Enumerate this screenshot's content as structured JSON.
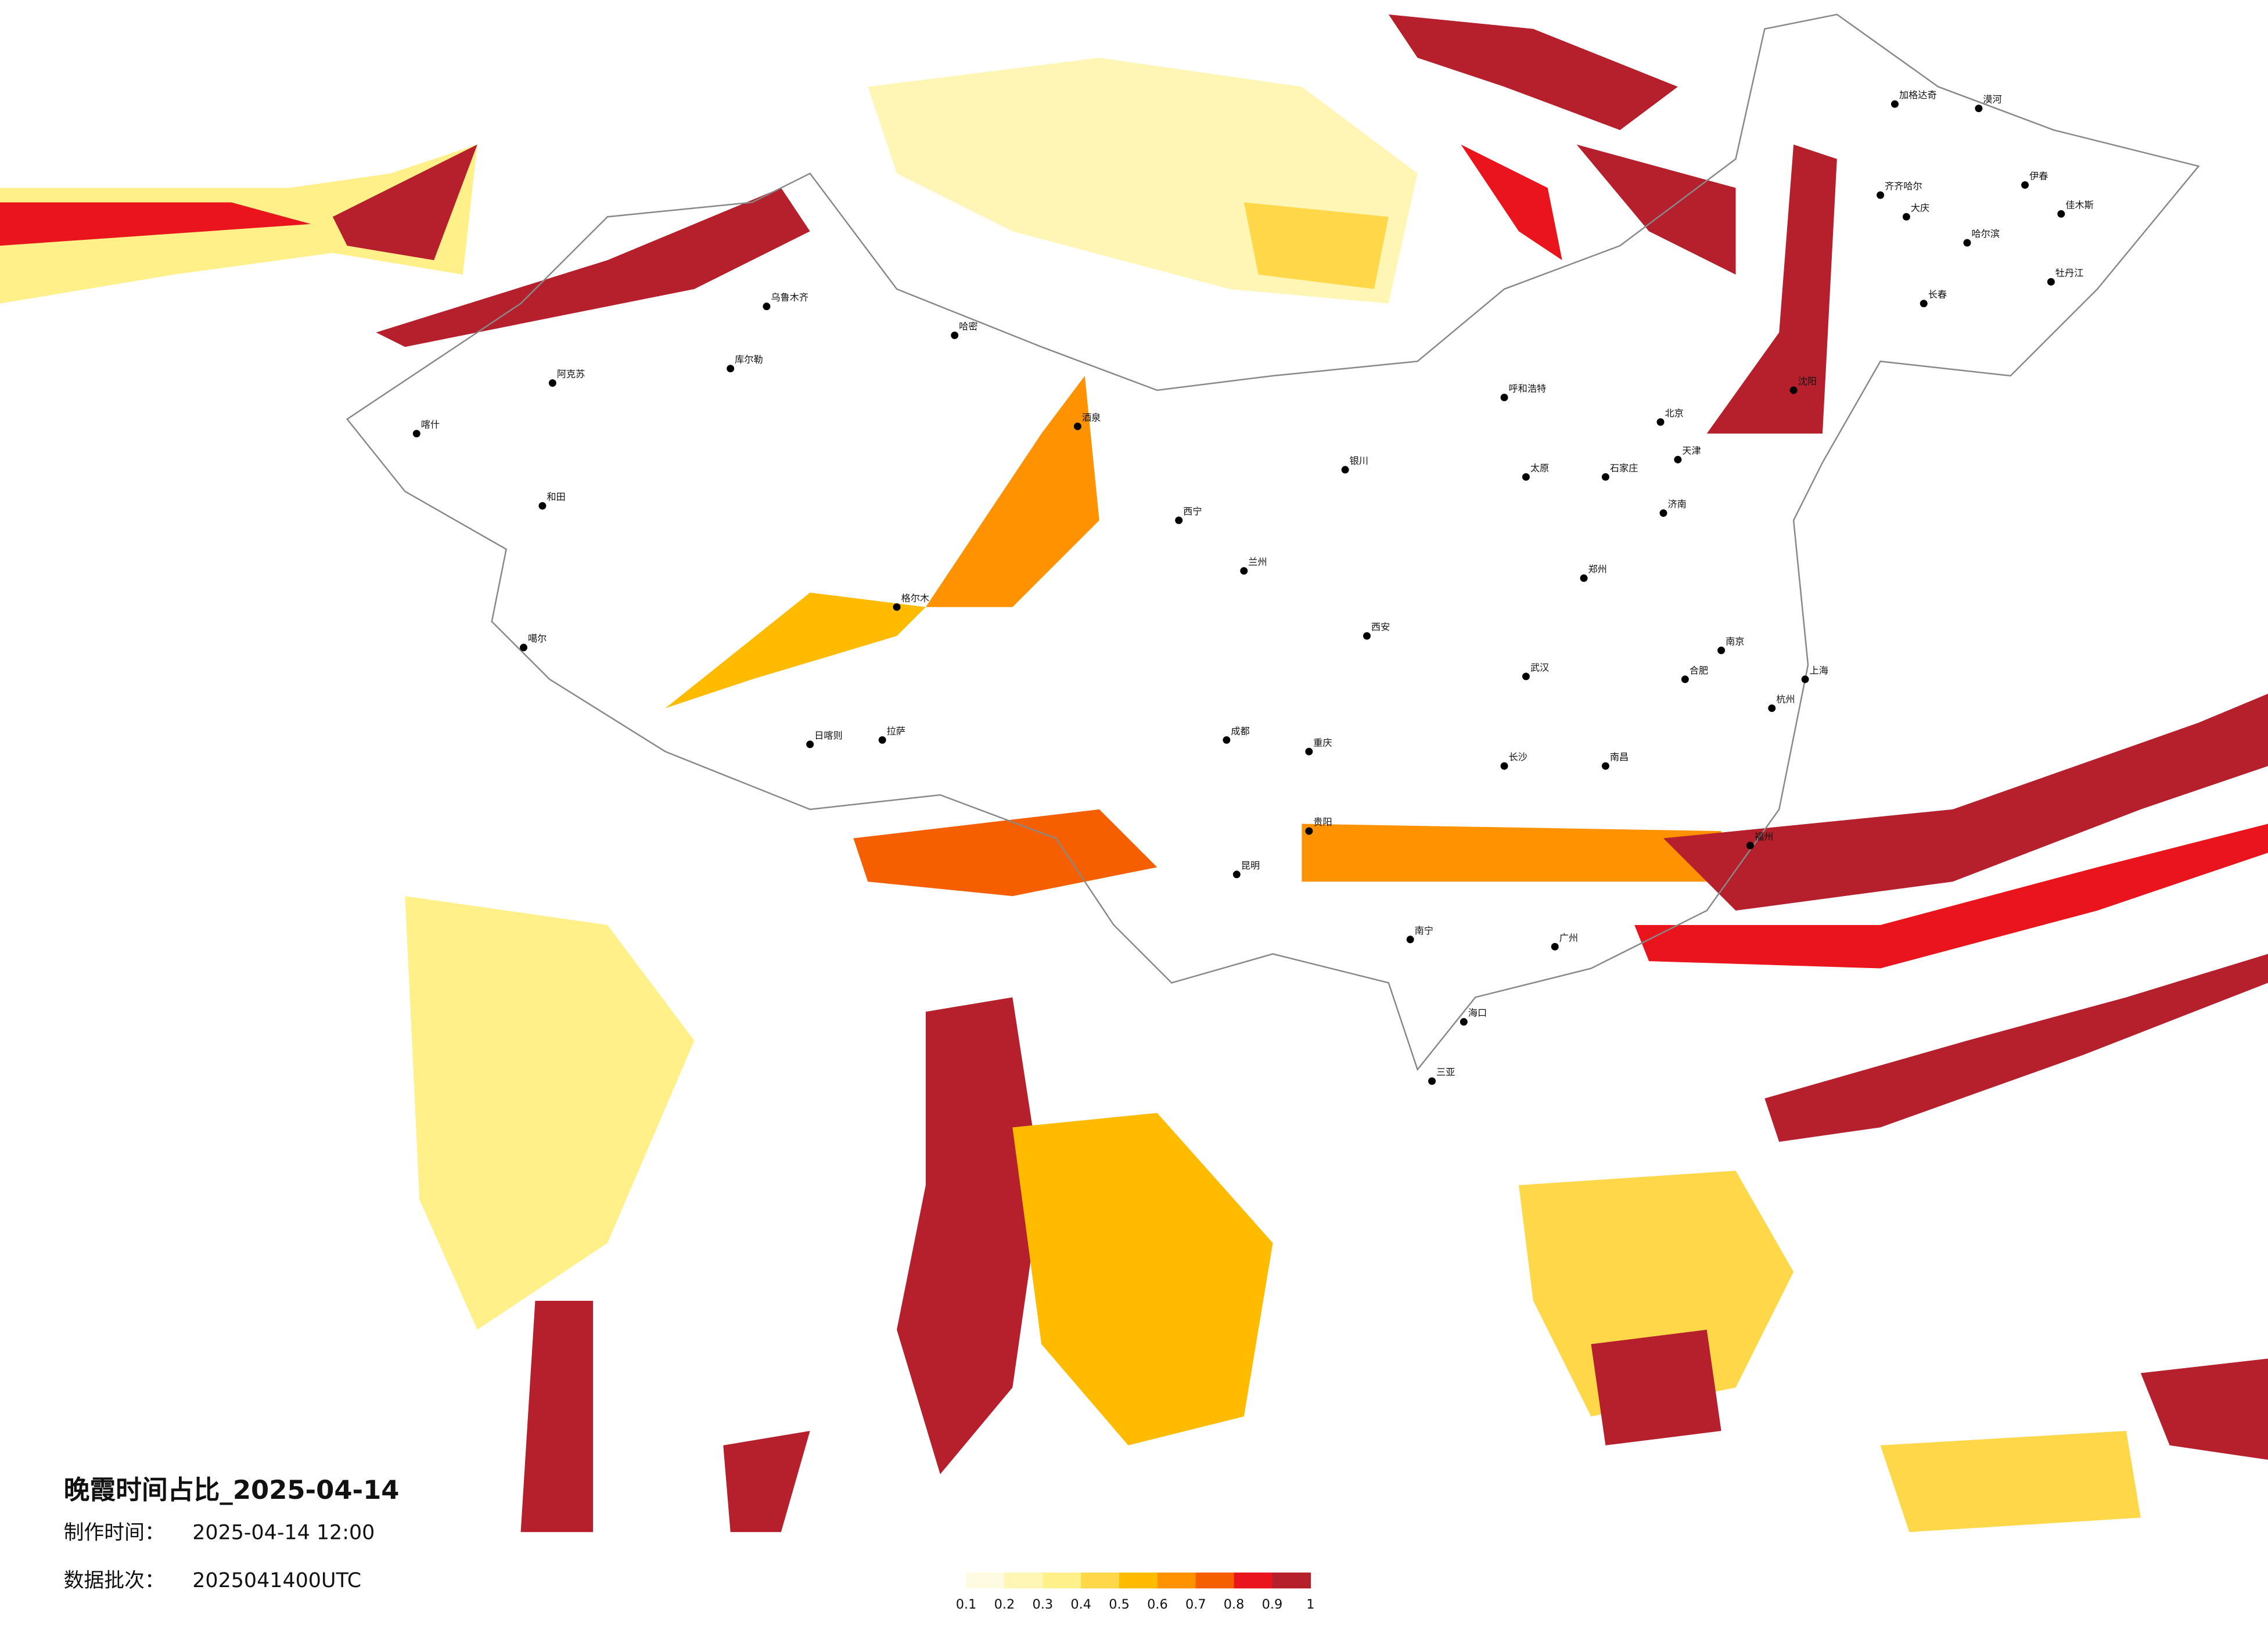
{
  "map": {
    "title": "晚霞时间占比_2025-04-14",
    "made_label": "制作时间：",
    "made_time": "2025-04-14 12:00",
    "batch_label": "数据批次：",
    "batch": "2025041400UTC",
    "legend": {
      "colors": [
        "#fffbe0",
        "#fff6b5",
        "#fff08a",
        "#ffd84a",
        "#ffbb00",
        "#ff9200",
        "#f55f00",
        "#ea141c",
        "#b5202c"
      ],
      "ticks": [
        0.1,
        0.2,
        0.3,
        0.4,
        0.5,
        0.6,
        0.7,
        0.8,
        0.9,
        1
      ]
    },
    "cities": [
      "北京",
      "天津",
      "上海",
      "广州",
      "重庆",
      "成都",
      "武汉",
      "西安",
      "哈尔滨",
      "长春",
      "沈阳",
      "乌鲁木齐",
      "拉萨",
      "昆明",
      "南宁",
      "海口",
      "兰州",
      "西宁",
      "银川",
      "呼和浩特",
      "郑州",
      "济南",
      "南京",
      "杭州",
      "福州",
      "长沙",
      "贵阳",
      "南昌",
      "合肥",
      "太原",
      "石家庄",
      "喀什",
      "和田",
      "阿克苏",
      "格尔木",
      "日喀则",
      "噶尔",
      "库尔勒",
      "哈密",
      "酒泉",
      "伊春",
      "佳木斯",
      "牡丹江",
      "大庆",
      "齐齐哈尔",
      "加格达奇",
      "漠河",
      "三亚"
    ]
  }
}
